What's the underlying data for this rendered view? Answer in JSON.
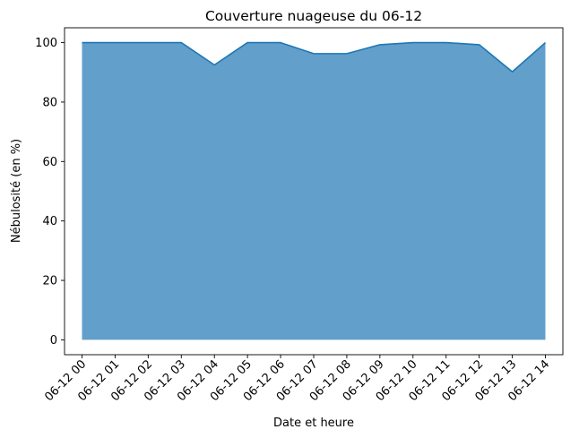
{
  "chart_data": {
    "type": "area",
    "title": "Couverture nuageuse du 06-12",
    "xlabel": "Date et heure",
    "ylabel": "Nébulosité (en %)",
    "categories": [
      "06-12 00",
      "06-12 01",
      "06-12 02",
      "06-12 03",
      "06-12 04",
      "06-12 05",
      "06-12 06",
      "06-12 07",
      "06-12 08",
      "06-12 09",
      "06-12 10",
      "06-12 11",
      "06-12 12",
      "06-12 13",
      "06-12 14"
    ],
    "values": [
      100,
      100,
      100,
      100,
      92.5,
      100,
      100,
      96.3,
      96.3,
      99.3,
      100,
      100,
      99.3,
      90.2,
      100
    ],
    "ylim": [
      -5,
      105
    ],
    "yticks": [
      0,
      20,
      40,
      60,
      80,
      100
    ],
    "grid": false,
    "colors": {
      "fill": "#629fcb",
      "line": "#1f77b4"
    }
  }
}
